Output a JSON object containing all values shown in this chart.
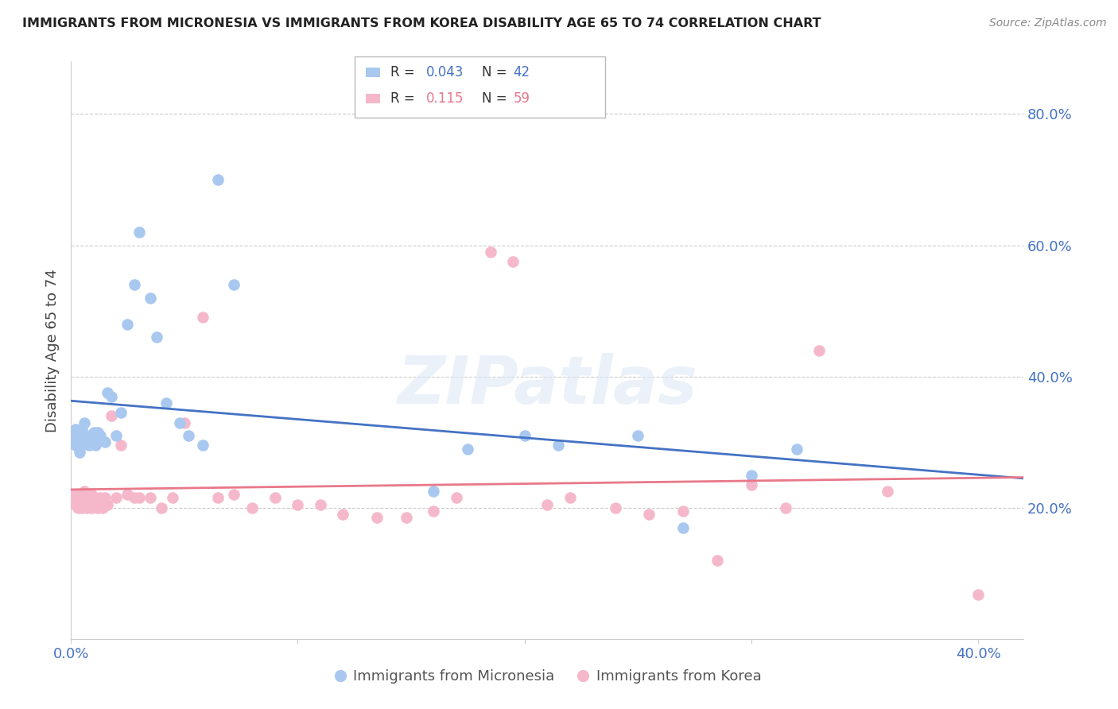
{
  "title": "IMMIGRANTS FROM MICRONESIA VS IMMIGRANTS FROM KOREA DISABILITY AGE 65 TO 74 CORRELATION CHART",
  "source": "Source: ZipAtlas.com",
  "ylabel": "Disability Age 65 to 74",
  "xlim": [
    0.0,
    0.42
  ],
  "ylim": [
    0.0,
    0.88
  ],
  "xticks": [
    0.0,
    0.1,
    0.2,
    0.3,
    0.4
  ],
  "xticklabels": [
    "0.0%",
    "",
    "",
    "",
    "40.0%"
  ],
  "yticks_right": [
    0.2,
    0.4,
    0.6,
    0.8
  ],
  "yticklabels_right": [
    "20.0%",
    "40.0%",
    "60.0%",
    "80.0%"
  ],
  "micronesia_color": "#a8c8f0",
  "korea_color": "#f5b8cb",
  "micronesia_line_color": "#4472c4",
  "korea_line_color": "#e8788a",
  "watermark_text": "ZIPatlas",
  "micronesia_x": [
    0.001,
    0.002,
    0.002,
    0.003,
    0.003,
    0.004,
    0.004,
    0.005,
    0.005,
    0.006,
    0.006,
    0.007,
    0.008,
    0.009,
    0.01,
    0.011,
    0.012,
    0.013,
    0.015,
    0.016,
    0.018,
    0.02,
    0.022,
    0.025,
    0.028,
    0.03,
    0.035,
    0.038,
    0.042,
    0.048,
    0.052,
    0.058,
    0.065,
    0.072,
    0.16,
    0.175,
    0.2,
    0.215,
    0.25,
    0.27,
    0.3,
    0.32
  ],
  "micronesia_y": [
    0.305,
    0.295,
    0.32,
    0.3,
    0.315,
    0.285,
    0.31,
    0.295,
    0.32,
    0.3,
    0.33,
    0.31,
    0.295,
    0.31,
    0.315,
    0.295,
    0.315,
    0.31,
    0.3,
    0.375,
    0.37,
    0.31,
    0.345,
    0.48,
    0.54,
    0.62,
    0.52,
    0.46,
    0.36,
    0.33,
    0.31,
    0.295,
    0.7,
    0.54,
    0.225,
    0.29,
    0.31,
    0.295,
    0.31,
    0.17,
    0.25,
    0.29
  ],
  "korea_x": [
    0.001,
    0.002,
    0.002,
    0.003,
    0.003,
    0.004,
    0.004,
    0.005,
    0.005,
    0.006,
    0.006,
    0.007,
    0.007,
    0.008,
    0.008,
    0.009,
    0.009,
    0.01,
    0.011,
    0.012,
    0.013,
    0.014,
    0.015,
    0.016,
    0.018,
    0.02,
    0.022,
    0.025,
    0.028,
    0.03,
    0.035,
    0.04,
    0.045,
    0.05,
    0.058,
    0.065,
    0.072,
    0.08,
    0.09,
    0.1,
    0.11,
    0.12,
    0.135,
    0.148,
    0.16,
    0.17,
    0.185,
    0.195,
    0.21,
    0.22,
    0.24,
    0.255,
    0.27,
    0.285,
    0.3,
    0.315,
    0.33,
    0.36,
    0.4
  ],
  "korea_y": [
    0.215,
    0.205,
    0.22,
    0.2,
    0.215,
    0.205,
    0.22,
    0.2,
    0.215,
    0.205,
    0.225,
    0.2,
    0.22,
    0.205,
    0.215,
    0.2,
    0.22,
    0.205,
    0.215,
    0.2,
    0.215,
    0.2,
    0.215,
    0.205,
    0.34,
    0.215,
    0.295,
    0.22,
    0.215,
    0.215,
    0.215,
    0.2,
    0.215,
    0.33,
    0.49,
    0.215,
    0.22,
    0.2,
    0.215,
    0.205,
    0.205,
    0.19,
    0.185,
    0.185,
    0.195,
    0.215,
    0.59,
    0.575,
    0.205,
    0.215,
    0.2,
    0.19,
    0.195,
    0.12,
    0.235,
    0.2,
    0.44,
    0.225,
    0.068
  ]
}
